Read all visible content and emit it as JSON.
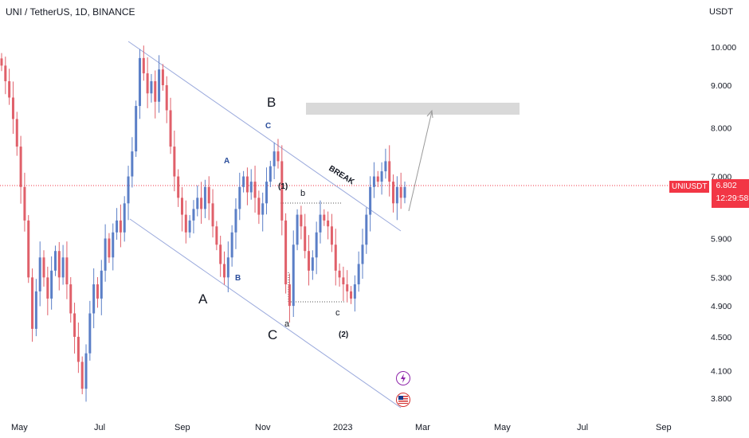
{
  "header": {
    "title": "UNI / TetherUS, 1D, BINANCE",
    "unit": "USDT"
  },
  "price_label": {
    "symbol": "UNIUSDT",
    "price": "6.802",
    "countdown": "12:29:58"
  },
  "annotations": {
    "break": "BREAK",
    "big_B": "B",
    "big_A": "A",
    "big_C": "C",
    "blue_C": "C",
    "blue_A": "A",
    "blue_B": "B",
    "wave_1": "(1)",
    "wave_2": "(2)",
    "small_b": "b",
    "small_a": "a",
    "small_c": "c"
  },
  "colors": {
    "up": "#5b7fc7",
    "down": "#e0606a",
    "channel": "#9aa9dc",
    "price_line": "#f23645",
    "target_box": "#d9d9d9"
  },
  "chart_data": {
    "type": "candlestick",
    "title": "UNI / TetherUS, 1D, BINANCE",
    "ylabel": "USDT",
    "y_scale": "log",
    "ylim": [
      3.62,
      11.5
    ],
    "y_ticks": [
      "10.000",
      "9.000",
      "8.000",
      "7.000",
      "5.900",
      "5.300",
      "4.900",
      "4.500",
      "4.100",
      "3.800"
    ],
    "x_ticks": [
      "May",
      "Jul",
      "Sep",
      "Nov",
      "2023",
      "Mar",
      "May",
      "Jul",
      "Sep"
    ],
    "last_price": 6.802,
    "target_zone": [
      8.2,
      8.5
    ],
    "series": [
      {
        "values": [
          9.5,
          9.1,
          8.7,
          8.2,
          7.6,
          6.8,
          6.2,
          5.3,
          4.6,
          5.1,
          5.6,
          5.3,
          5.0,
          5.4,
          5.7,
          5.3,
          5.6,
          5.2,
          4.8,
          4.5,
          4.2,
          3.9,
          4.3,
          4.8,
          5.2,
          5.0,
          5.4,
          5.9,
          5.6,
          6.0,
          6.2,
          6.0,
          6.5,
          7.0,
          7.5,
          8.5,
          9.7,
          9.3,
          8.8,
          9.1,
          8.6,
          9.4,
          9.0,
          8.4,
          7.6,
          7.0,
          6.6,
          6.3,
          6.0,
          6.2,
          6.4,
          6.6,
          6.4,
          6.8,
          6.5,
          6.1,
          5.8,
          5.5,
          5.3,
          5.6,
          6.0,
          6.4,
          6.8,
          7.0,
          6.7,
          6.9,
          6.6,
          6.3,
          6.5,
          6.9,
          7.2,
          7.5,
          7.3,
          6.2,
          5.2,
          4.9,
          5.8,
          6.3,
          6.1,
          5.7,
          5.4,
          5.6,
          6.0,
          6.3,
          6.2,
          6.1,
          5.8,
          5.4,
          5.3,
          5.2,
          5.1,
          5.0,
          5.2,
          5.5,
          5.8,
          6.3,
          6.8,
          7.0,
          6.9,
          7.1,
          7.3,
          6.9,
          6.5,
          6.8,
          6.6,
          6.8
        ]
      }
    ]
  }
}
